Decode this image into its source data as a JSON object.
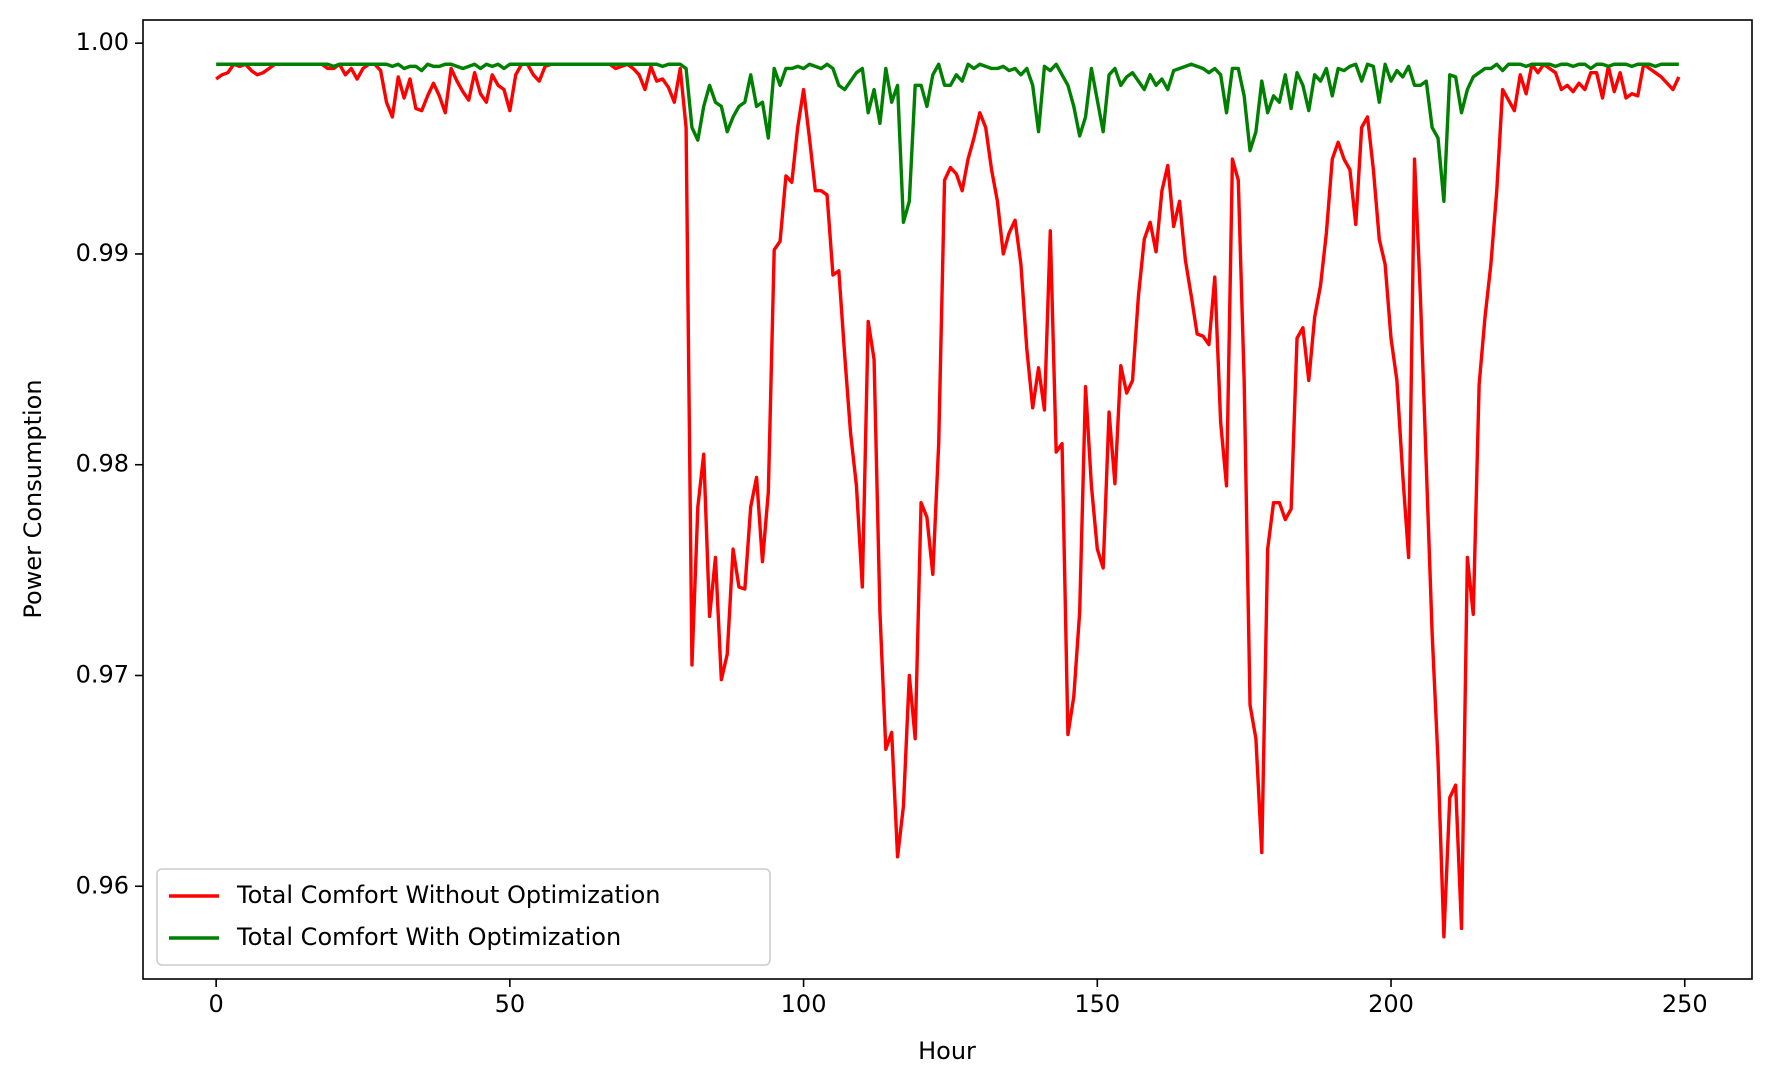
{
  "chart_data": {
    "type": "line",
    "x_label": "Hour",
    "y_label": "Power Consumption",
    "xlim": [
      -12.45,
      261.45
    ],
    "ylim": [
      0.9556,
      1.0011
    ],
    "xticks": [
      0,
      50,
      100,
      150,
      200,
      250
    ],
    "yticks": [
      0.96,
      0.97,
      0.98,
      0.99,
      {
        "value": 1,
        "label": "1.00"
      }
    ],
    "grid": false,
    "legend": "lower left",
    "x": [
      0,
      1,
      2,
      3,
      4,
      5,
      6,
      7,
      8,
      9,
      10,
      11,
      12,
      13,
      14,
      15,
      16,
      17,
      18,
      19,
      20,
      21,
      22,
      23,
      24,
      25,
      26,
      27,
      28,
      29,
      30,
      31,
      32,
      33,
      34,
      35,
      36,
      37,
      38,
      39,
      40,
      41,
      42,
      43,
      44,
      45,
      46,
      47,
      48,
      49,
      50,
      51,
      52,
      53,
      54,
      55,
      56,
      57,
      58,
      59,
      60,
      61,
      62,
      63,
      64,
      65,
      66,
      67,
      68,
      69,
      70,
      71,
      72,
      73,
      74,
      75,
      76,
      77,
      78,
      79,
      80,
      81,
      82,
      83,
      84,
      85,
      86,
      87,
      88,
      89,
      90,
      91,
      92,
      93,
      94,
      95,
      96,
      97,
      98,
      99,
      100,
      101,
      102,
      103,
      104,
      105,
      106,
      107,
      108,
      109,
      110,
      111,
      112,
      113,
      114,
      115,
      116,
      117,
      118,
      119,
      120,
      121,
      122,
      123,
      124,
      125,
      126,
      127,
      128,
      129,
      130,
      131,
      132,
      133,
      134,
      135,
      136,
      137,
      138,
      139,
      140,
      141,
      142,
      143,
      144,
      145,
      146,
      147,
      148,
      149,
      150,
      151,
      152,
      153,
      154,
      155,
      156,
      157,
      158,
      159,
      160,
      161,
      162,
      163,
      164,
      165,
      166,
      167,
      168,
      169,
      170,
      171,
      172,
      173,
      174,
      175,
      176,
      177,
      178,
      179,
      180,
      181,
      182,
      183,
      184,
      185,
      186,
      187,
      188,
      189,
      190,
      191,
      192,
      193,
      194,
      195,
      196,
      197,
      198,
      199,
      200,
      201,
      202,
      203,
      204,
      205,
      206,
      207,
      208,
      209,
      210,
      211,
      212,
      213,
      214,
      215,
      216,
      217,
      218,
      219,
      220,
      221,
      222,
      223,
      224,
      225,
      226,
      227,
      228,
      229,
      230,
      231,
      232,
      233,
      234,
      235,
      236,
      237,
      238,
      239,
      240,
      241,
      242,
      243,
      244,
      245,
      246,
      247,
      248,
      249
    ],
    "series": [
      {
        "name": "Total Comfort Without Optimization",
        "color": "#ff0000",
        "values": [
          0.9983,
          0.9985,
          0.9986,
          0.999,
          0.9989,
          0.999,
          0.9987,
          0.9985,
          0.9986,
          0.9988,
          0.999,
          0.999,
          0.999,
          0.999,
          0.999,
          0.999,
          0.999,
          0.999,
          0.999,
          0.9988,
          0.9988,
          0.999,
          0.9985,
          0.9988,
          0.9983,
          0.9988,
          0.999,
          0.999,
          0.9987,
          0.9972,
          0.9965,
          0.9984,
          0.9974,
          0.9983,
          0.9969,
          0.9968,
          0.9975,
          0.9981,
          0.9975,
          0.9967,
          0.9988,
          0.9982,
          0.9977,
          0.9973,
          0.9986,
          0.9976,
          0.9972,
          0.9985,
          0.998,
          0.9978,
          0.9968,
          0.9985,
          0.999,
          0.999,
          0.9985,
          0.9982,
          0.9989,
          0.999,
          0.999,
          0.999,
          0.999,
          0.999,
          0.999,
          0.999,
          0.999,
          0.999,
          0.999,
          0.999,
          0.9988,
          0.9989,
          0.999,
          0.9988,
          0.9985,
          0.9978,
          0.9989,
          0.9982,
          0.9983,
          0.9979,
          0.9972,
          0.9988,
          0.996,
          0.9705,
          0.978,
          0.9805,
          0.9728,
          0.9756,
          0.9698,
          0.971,
          0.976,
          0.9742,
          0.9741,
          0.978,
          0.9794,
          0.9754,
          0.9787,
          0.9902,
          0.9906,
          0.9937,
          0.9934,
          0.996,
          0.9978,
          0.9955,
          0.993,
          0.993,
          0.9928,
          0.989,
          0.9892,
          0.9852,
          0.9815,
          0.979,
          0.9742,
          0.9868,
          0.985,
          0.973,
          0.9665,
          0.9673,
          0.9614,
          0.9638,
          0.97,
          0.967,
          0.9782,
          0.9775,
          0.9748,
          0.981,
          0.9935,
          0.9941,
          0.9938,
          0.993,
          0.9945,
          0.9955,
          0.9967,
          0.996,
          0.994,
          0.9925,
          0.99,
          0.991,
          0.9916,
          0.9895,
          0.9855,
          0.9827,
          0.9846,
          0.9826,
          0.9911,
          0.9806,
          0.981,
          0.9672,
          0.969,
          0.973,
          0.9837,
          0.979,
          0.976,
          0.9751,
          0.9825,
          0.9791,
          0.9847,
          0.9834,
          0.984,
          0.988,
          0.9907,
          0.9915,
          0.9901,
          0.993,
          0.9942,
          0.9913,
          0.9925,
          0.9897,
          0.988,
          0.9862,
          0.9861,
          0.9857,
          0.9889,
          0.982,
          0.979,
          0.9945,
          0.9935,
          0.984,
          0.9686,
          0.967,
          0.9616,
          0.976,
          0.9782,
          0.9782,
          0.9774,
          0.9779,
          0.986,
          0.9865,
          0.984,
          0.987,
          0.9885,
          0.991,
          0.9945,
          0.9953,
          0.9945,
          0.994,
          0.9914,
          0.996,
          0.9965,
          0.994,
          0.9907,
          0.9895,
          0.986,
          0.984,
          0.9795,
          0.9756,
          0.9945,
          0.988,
          0.98,
          0.972,
          0.966,
          0.9576,
          0.9642,
          0.9648,
          0.958,
          0.9756,
          0.9729,
          0.9838,
          0.987,
          0.9895,
          0.993,
          0.9978,
          0.9973,
          0.9968,
          0.9985,
          0.9976,
          0.999,
          0.9986,
          0.999,
          0.9988,
          0.9986,
          0.9978,
          0.998,
          0.9977,
          0.9981,
          0.9978,
          0.9986,
          0.9986,
          0.9974,
          0.9989,
          0.9977,
          0.9986,
          0.9974,
          0.9976,
          0.9975,
          0.999,
          0.9988,
          0.9986,
          0.9984,
          0.9981,
          0.9978,
          0.9984
        ]
      },
      {
        "name": "Total Comfort With Optimization",
        "color": "#008000",
        "values": [
          0.999,
          0.999,
          0.999,
          0.999,
          0.999,
          0.999,
          0.999,
          0.999,
          0.999,
          0.999,
          0.999,
          0.999,
          0.999,
          0.999,
          0.999,
          0.999,
          0.999,
          0.999,
          0.999,
          0.999,
          0.9989,
          0.999,
          0.999,
          0.999,
          0.999,
          0.999,
          0.999,
          0.999,
          0.999,
          0.999,
          0.9989,
          0.999,
          0.9988,
          0.9989,
          0.9989,
          0.9987,
          0.999,
          0.9989,
          0.9989,
          0.999,
          0.999,
          0.9989,
          0.9988,
          0.9989,
          0.999,
          0.9988,
          0.999,
          0.9989,
          0.999,
          0.9988,
          0.999,
          0.999,
          0.999,
          0.999,
          0.999,
          0.999,
          0.999,
          0.999,
          0.999,
          0.999,
          0.999,
          0.999,
          0.999,
          0.999,
          0.999,
          0.999,
          0.999,
          0.999,
          0.999,
          0.999,
          0.999,
          0.999,
          0.999,
          0.999,
          0.999,
          0.999,
          0.9989,
          0.999,
          0.999,
          0.999,
          0.9988,
          0.996,
          0.9954,
          0.997,
          0.998,
          0.9972,
          0.997,
          0.9958,
          0.9965,
          0.997,
          0.9972,
          0.9985,
          0.997,
          0.9972,
          0.9955,
          0.9988,
          0.998,
          0.9988,
          0.9988,
          0.9989,
          0.9988,
          0.999,
          0.9989,
          0.9988,
          0.999,
          0.9988,
          0.998,
          0.9978,
          0.9982,
          0.9986,
          0.9988,
          0.9967,
          0.9978,
          0.9962,
          0.9988,
          0.9972,
          0.998,
          0.9915,
          0.9925,
          0.998,
          0.998,
          0.997,
          0.9985,
          0.999,
          0.998,
          0.998,
          0.9985,
          0.9982,
          0.999,
          0.9988,
          0.999,
          0.9989,
          0.9988,
          0.9988,
          0.9989,
          0.9987,
          0.9988,
          0.9985,
          0.9988,
          0.998,
          0.9958,
          0.9989,
          0.9987,
          0.999,
          0.9985,
          0.998,
          0.997,
          0.9956,
          0.9965,
          0.9988,
          0.9973,
          0.9958,
          0.9985,
          0.9988,
          0.998,
          0.9984,
          0.9986,
          0.9982,
          0.9978,
          0.9985,
          0.998,
          0.9983,
          0.9978,
          0.9987,
          0.9988,
          0.9989,
          0.999,
          0.9989,
          0.9988,
          0.9986,
          0.9988,
          0.9985,
          0.9967,
          0.9988,
          0.9988,
          0.9975,
          0.9949,
          0.9958,
          0.9982,
          0.9967,
          0.9975,
          0.9972,
          0.9985,
          0.9969,
          0.9986,
          0.998,
          0.9968,
          0.9985,
          0.9982,
          0.9988,
          0.9975,
          0.9988,
          0.9987,
          0.9989,
          0.999,
          0.9982,
          0.999,
          0.9989,
          0.9972,
          0.999,
          0.9982,
          0.9987,
          0.9984,
          0.9989,
          0.998,
          0.998,
          0.9982,
          0.996,
          0.9955,
          0.9925,
          0.9985,
          0.9984,
          0.9967,
          0.9978,
          0.9984,
          0.9986,
          0.9988,
          0.9988,
          0.999,
          0.9987,
          0.999,
          0.999,
          0.999,
          0.9989,
          0.999,
          0.999,
          0.999,
          0.999,
          0.9989,
          0.999,
          0.999,
          0.9989,
          0.999,
          0.999,
          0.9988,
          0.999,
          0.999,
          0.9989,
          0.999,
          0.999,
          0.999,
          0.9989,
          0.999,
          0.999,
          0.999,
          0.9989,
          0.999,
          0.999,
          0.999,
          0.999
        ]
      }
    ]
  }
}
